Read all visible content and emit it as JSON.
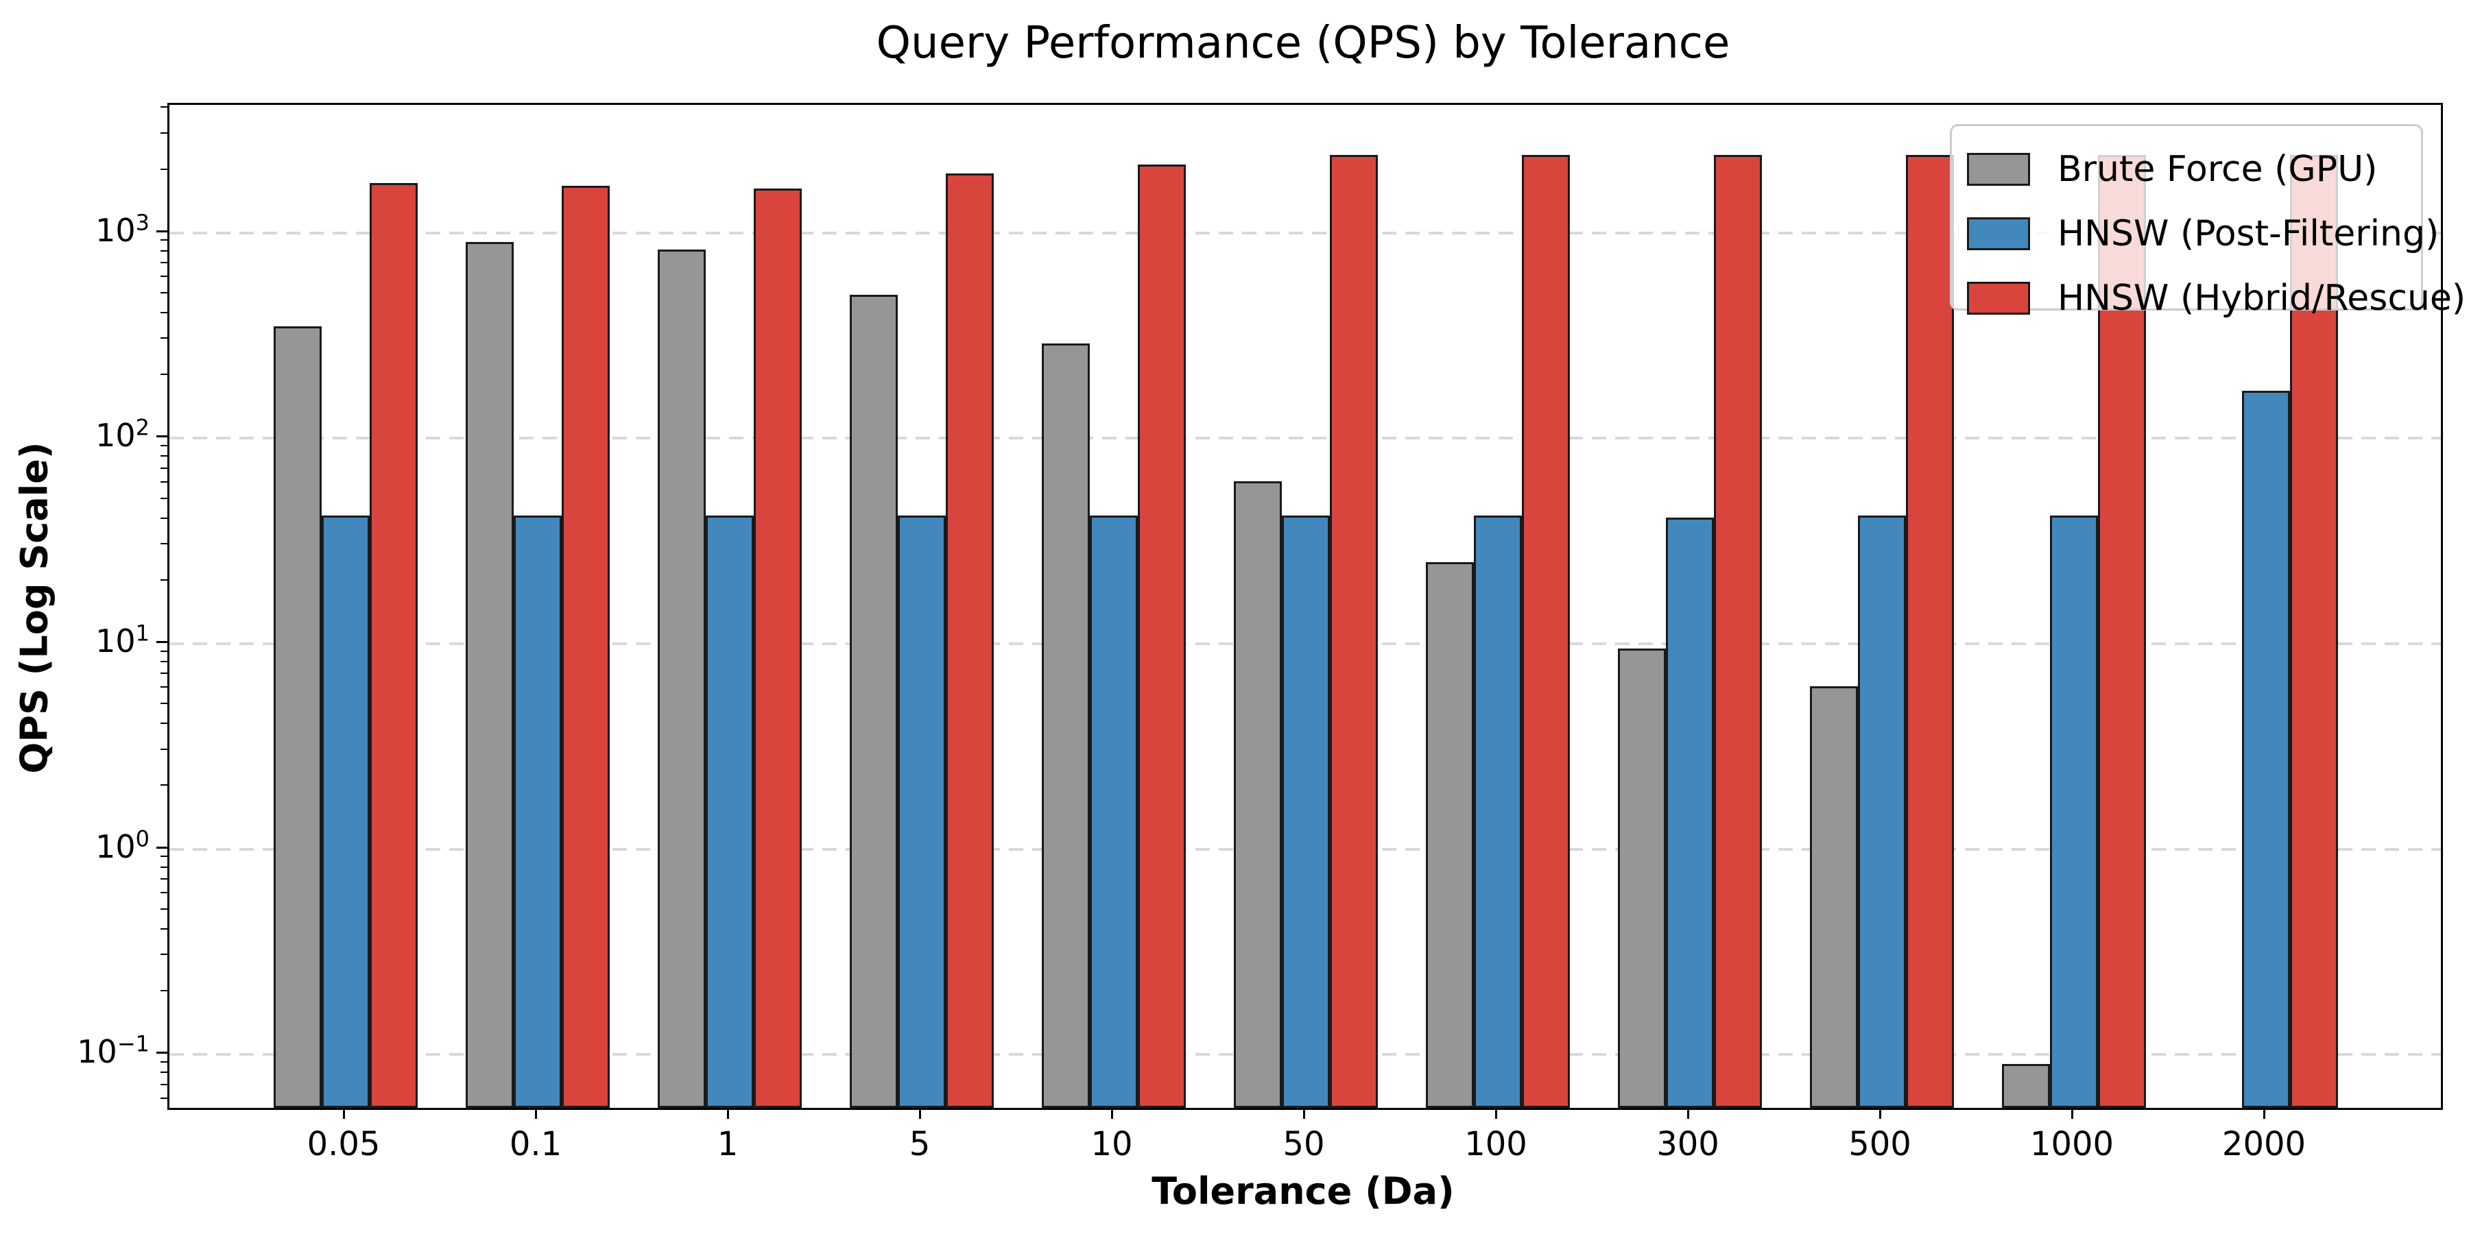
{
  "chart_data": {
    "type": "bar",
    "title": "Query Performance (QPS) by Tolerance",
    "xlabel": "Tolerance (Da)",
    "ylabel": "QPS (Log Scale)",
    "yscale": "log",
    "ylim": [
      0.055,
      4200
    ],
    "grid": "horizontal-dashed-major-decades",
    "legend_position": "upper-right",
    "categories": [
      "0.05",
      "0.1",
      "1",
      "5",
      "10",
      "50",
      "100",
      "300",
      "500",
      "1000",
      "2000"
    ],
    "y_tick_exponents": [
      -1,
      0,
      1,
      2,
      3
    ],
    "series": [
      {
        "name": "Brute Force (GPU)",
        "color": "#969696",
        "values": [
          350,
          900,
          830,
          500,
          290,
          62,
          25,
          9.5,
          6.2,
          0.09,
          null
        ]
      },
      {
        "name": "HNSW (Post-Filtering)",
        "color": "#4288BD",
        "values": [
          42,
          42,
          42,
          42,
          42,
          42,
          42,
          41,
          42,
          42,
          170
        ]
      },
      {
        "name": "HNSW (Hybrid/Rescue)",
        "color": "#D9453D",
        "values": [
          1750,
          1700,
          1650,
          1950,
          2150,
          2400,
          2400,
          2400,
          2400,
          2400,
          2400
        ]
      }
    ]
  },
  "colors": {
    "bar_edge": "#1a1a1a",
    "axis": "#000000",
    "grid": "#d9d9d9",
    "legend_border": "#cccccc",
    "background": "#ffffff"
  }
}
